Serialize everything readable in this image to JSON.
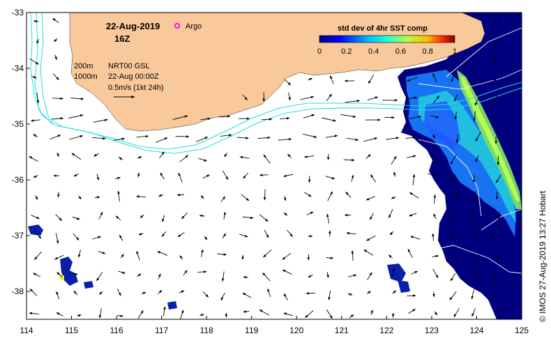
{
  "map": {
    "date": "22-Aug-2019",
    "time": "16Z",
    "argo_label": "Argo",
    "contour_200": "200m",
    "contour_1000": "1000m",
    "product": "NRT00 GSL",
    "product_time": "22-Aug 00:00Z",
    "scale_label": "0.5m/s (1kt 24h)",
    "credit": "© IMOS 27-Aug-2019 13:27 Hobart",
    "lon_range": [
      114,
      125
    ],
    "lat_range": [
      -38.5,
      -33
    ],
    "lon_ticks": [
      "114",
      "115",
      "116",
      "117",
      "118",
      "119",
      "120",
      "121",
      "122",
      "123",
      "124",
      "125"
    ],
    "lat_ticks": [
      "-33",
      "-34",
      "-35",
      "-36",
      "-37",
      "-38"
    ],
    "colorbar": {
      "title": "std dev of 4hr SST comp",
      "ticks": [
        "0",
        "0.2",
        "0.4",
        "0.6",
        "0.8",
        "1"
      ],
      "range": [
        0,
        1
      ]
    },
    "colors": {
      "land": "#f9c89b",
      "contour": "#22dddd",
      "ssh_line": "#ffffff",
      "argo": "#ff00ff",
      "sst_low": "#00007f",
      "sst_mid": "#00b2ff",
      "sst_high": "#7fff7f"
    }
  }
}
